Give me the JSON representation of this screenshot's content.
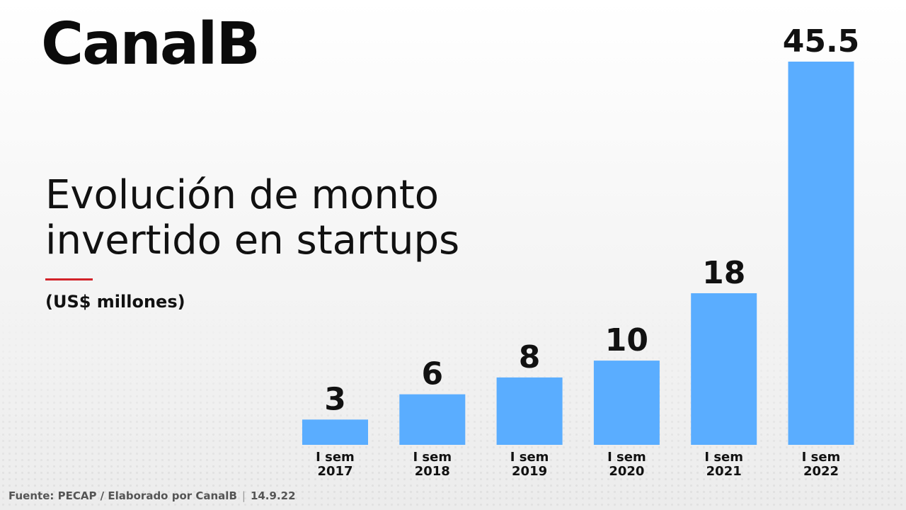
{
  "brand": "CanalB",
  "title_lines": [
    "Evolución de monto",
    "invertido en startups"
  ],
  "unit": "(US$ millones)",
  "footer": {
    "source": "Fuente: PECAP / Elaborado por CanalB",
    "date": "14.9.22"
  },
  "colors": {
    "bar": "#5aadff",
    "accent": "#d2232a",
    "text": "#111111"
  },
  "chart_data": {
    "type": "bar",
    "categories": [
      [
        "I sem",
        "2017"
      ],
      [
        "I sem",
        "2018"
      ],
      [
        "I sem",
        "2019"
      ],
      [
        "I sem",
        "2020"
      ],
      [
        "I sem",
        "2021"
      ],
      [
        "I sem",
        "2022"
      ]
    ],
    "values": [
      3,
      6,
      8,
      10,
      18,
      45.5
    ],
    "value_labels": [
      "3",
      "6",
      "8",
      "10",
      "18",
      "45.5"
    ],
    "ylim": [
      0,
      45.5
    ],
    "grid": false,
    "legend": "none",
    "title": "Evolución de monto invertido en startups",
    "ylabel": "(US$ millones)"
  }
}
